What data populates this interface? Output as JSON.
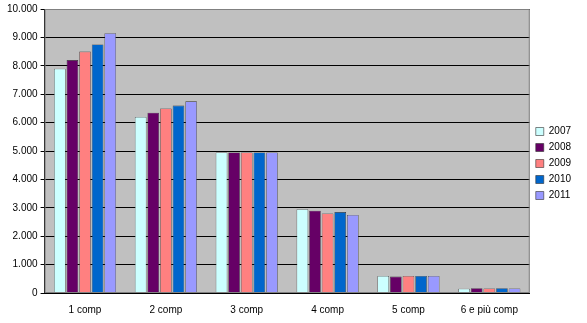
{
  "chart_data": {
    "type": "bar",
    "categories": [
      "1 comp",
      "2 comp",
      "3 comp",
      "4 comp",
      "5 comp",
      "6 e più comp"
    ],
    "series": [
      {
        "name": "2007",
        "color": "#ccffff",
        "values": [
          7900,
          6200,
          4950,
          2950,
          600,
          150
        ]
      },
      {
        "name": "2008",
        "color": "#660066",
        "values": [
          8200,
          6350,
          4950,
          2900,
          580,
          170
        ]
      },
      {
        "name": "2009",
        "color": "#ff8080",
        "values": [
          8500,
          6500,
          4950,
          2800,
          600,
          160
        ]
      },
      {
        "name": "2010",
        "color": "#0066cc",
        "values": [
          8750,
          6600,
          4950,
          2850,
          600,
          170
        ]
      },
      {
        "name": "2011",
        "color": "#9999ff",
        "values": [
          9150,
          6750,
          4950,
          2750,
          600,
          160
        ]
      }
    ],
    "ylim": [
      0,
      10000
    ],
    "yticks": [
      0,
      {
        "value": 1000,
        "label": "1.000"
      },
      {
        "value": 2000,
        "label": "2.000"
      },
      {
        "value": 3000,
        "label": "3.000"
      },
      {
        "value": 4000,
        "label": "4.000"
      },
      {
        "value": 5000,
        "label": "5.000"
      },
      {
        "value": 6000,
        "label": "6.000"
      },
      {
        "value": 7000,
        "label": "7.000"
      },
      {
        "value": 8000,
        "label": "8.000"
      },
      {
        "value": 9000,
        "label": "9.000"
      },
      {
        "value": 10000,
        "label": "10.000"
      }
    ],
    "grid": true,
    "legend": "right"
  }
}
